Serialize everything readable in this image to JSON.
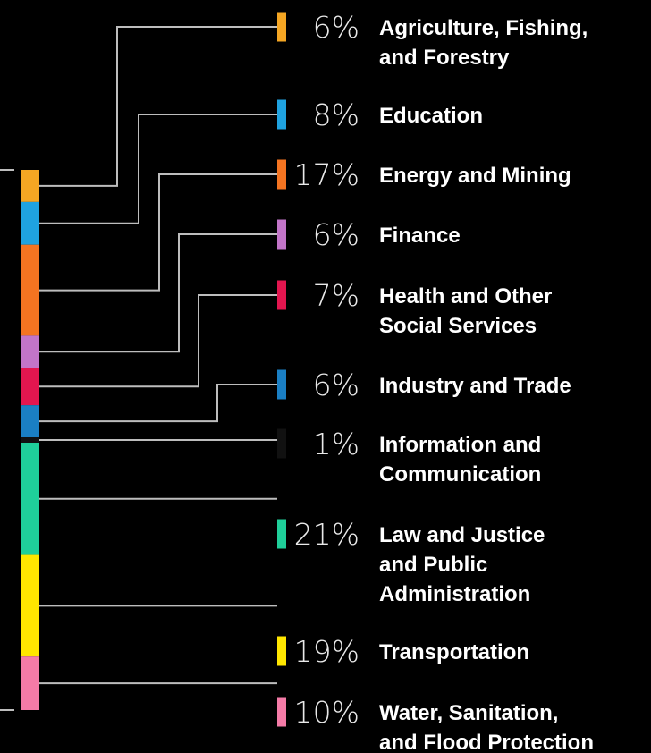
{
  "chart_data": {
    "type": "bar",
    "orientation": "stacked-vertical",
    "categories": [
      "Agriculture, Fishing, and Forestry",
      "Education",
      "Energy and Mining",
      "Finance",
      "Health and Other Social Services",
      "Industry and Trade",
      "Information and Communication",
      "Law and Justice and Public Administration",
      "Transportation",
      "Water, Sanitation, and Flood Protection"
    ],
    "label_lines": [
      [
        "Agriculture, Fishing,",
        "and Forestry"
      ],
      [
        "Education"
      ],
      [
        "Energy and Mining"
      ],
      [
        "Finance"
      ],
      [
        "Health and Other",
        "Social Services"
      ],
      [
        "Industry and Trade"
      ],
      [
        "Information and",
        "Communication"
      ],
      [
        "Law and Justice",
        "and Public",
        "Administration"
      ],
      [
        "Transportation"
      ],
      [
        "Water, Sanitation,",
        "and Flood Protection"
      ]
    ],
    "values": [
      6,
      8,
      17,
      6,
      7,
      6,
      1,
      21,
      19,
      10
    ],
    "value_labels": [
      "6%",
      "8%",
      "17%",
      "6%",
      "7%",
      "6%",
      "1%",
      "21%",
      "19%",
      "10%"
    ],
    "colors": [
      "#f5a623",
      "#1fa2e0",
      "#f47421",
      "#c275c8",
      "#e3164f",
      "#1a7fc4",
      "#111111",
      "#1fcf9a",
      "#ffe600",
      "#f47ba7"
    ],
    "unit": "%"
  }
}
